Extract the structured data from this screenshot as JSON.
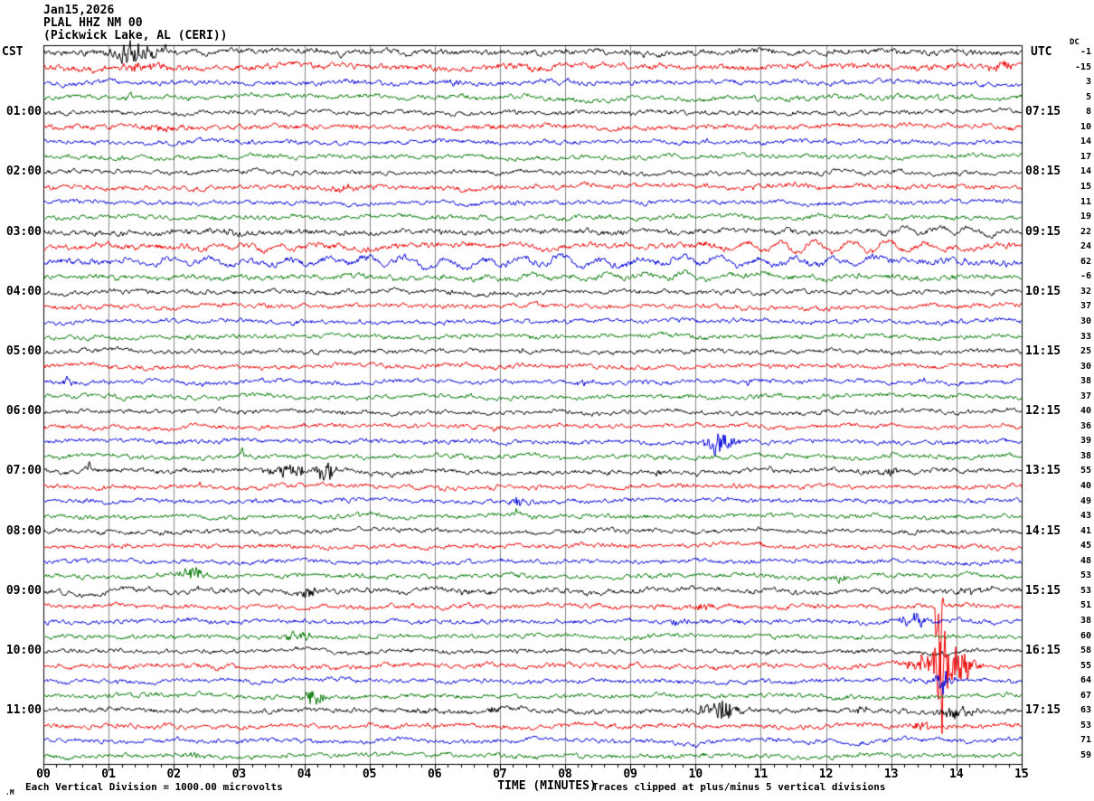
{
  "header": {
    "date": "Jan15,2026",
    "station": "PLAL HHZ NM 00",
    "location": "(Pickwick Lake, AL (CERI))"
  },
  "chart_data": {
    "type": "helicorder-seismogram",
    "left_timezone": "CST",
    "right_timezone": "UTC",
    "dc_label": "DC",
    "minutes_per_line": 15,
    "x_axis": {
      "label": "TIME (MINUTES)",
      "ticks": [
        "00",
        "01",
        "02",
        "03",
        "04",
        "05",
        "06",
        "07",
        "08",
        "09",
        "10",
        "11",
        "12",
        "13",
        "14",
        "15"
      ],
      "minor_per_major": 5
    },
    "footer": {
      "mark": ".M",
      "scale_note": "Each Vertical Division = 1000.00 microvolts",
      "clip_note": "Traces clipped at plus/minus 5 vertical divisions"
    },
    "colors": {
      "trace_cycle": [
        "#000000",
        "#ee0000",
        "#0000dd",
        "#007700"
      ],
      "grid": "#888888",
      "frame": "#000000",
      "background": "#ffffff"
    },
    "rows": [
      {
        "cst": "",
        "utc": "",
        "dc": -1,
        "amp": 1.3,
        "events": [
          {
            "type": "burst",
            "t": 1.35,
            "dur": 0.5,
            "amp": 8
          },
          {
            "type": "spike",
            "t": 1.32,
            "amp": 9
          },
          {
            "type": "spike",
            "t": 1.87,
            "amp": 8
          },
          {
            "type": "burst",
            "t": 1.6,
            "dur": 0.4,
            "amp": 4
          }
        ]
      },
      {
        "cst": "",
        "utc": "",
        "dc": -15,
        "amp": 1.4,
        "events": [
          {
            "type": "burst",
            "t": 1.6,
            "dur": 0.8,
            "amp": 3
          },
          {
            "type": "burst",
            "t": 14.65,
            "dur": 0.35,
            "amp": 4
          }
        ]
      },
      {
        "cst": "",
        "utc": "",
        "dc": 3,
        "amp": 1.1,
        "events": [
          {
            "type": "burst",
            "t": 6.3,
            "dur": 0.3,
            "amp": 2.5
          }
        ]
      },
      {
        "cst": "",
        "utc": "",
        "dc": 5,
        "amp": 1.1,
        "events": [
          {
            "type": "spike",
            "t": 1.34,
            "amp": 8
          }
        ]
      },
      {
        "cst": "01:00",
        "utc": "07:15",
        "dc": 8,
        "amp": 1.0,
        "events": []
      },
      {
        "cst": "",
        "utc": "",
        "dc": 10,
        "amp": 1.15,
        "events": [
          {
            "type": "burst",
            "t": 1.8,
            "dur": 0.5,
            "amp": 2
          }
        ]
      },
      {
        "cst": "",
        "utc": "",
        "dc": 14,
        "amp": 1.0,
        "events": []
      },
      {
        "cst": "",
        "utc": "",
        "dc": 17,
        "amp": 1.0,
        "events": []
      },
      {
        "cst": "02:00",
        "utc": "08:15",
        "dc": 14,
        "amp": 1.0,
        "events": []
      },
      {
        "cst": "",
        "utc": "",
        "dc": 15,
        "amp": 1.1,
        "events": [
          {
            "type": "burst",
            "t": 4.6,
            "dur": 0.4,
            "amp": 2.5
          }
        ]
      },
      {
        "cst": "",
        "utc": "",
        "dc": 11,
        "amp": 1.0,
        "events": []
      },
      {
        "cst": "",
        "utc": "",
        "dc": 19,
        "amp": 1.0,
        "events": []
      },
      {
        "cst": "03:00",
        "utc": "09:15",
        "dc": 22,
        "amp": 1.25,
        "events": [
          {
            "type": "low",
            "t": 12.6,
            "dur": 2.4,
            "amp": 4,
            "period": 0.5
          },
          {
            "type": "burst",
            "t": 2.9,
            "dur": 0.3,
            "amp": 2
          }
        ]
      },
      {
        "cst": "",
        "utc": "",
        "dc": 24,
        "amp": 1.35,
        "events": [
          {
            "type": "low",
            "t": 9.5,
            "dur": 5.5,
            "amp": 6,
            "period": 0.55
          },
          {
            "type": "low",
            "t": 1.0,
            "dur": 4.5,
            "amp": 3,
            "period": 0.5
          }
        ]
      },
      {
        "cst": "",
        "utc": "",
        "dc": 62,
        "amp": 1.45,
        "events": [
          {
            "type": "low",
            "t": 0,
            "dur": 15,
            "amp": 5,
            "period": 0.6
          }
        ]
      },
      {
        "cst": "",
        "utc": "",
        "dc": -6,
        "amp": 1.2,
        "events": [
          {
            "type": "low",
            "t": 5.5,
            "dur": 7,
            "amp": 2.5,
            "period": 0.6
          }
        ]
      },
      {
        "cst": "04:00",
        "utc": "10:15",
        "dc": 32,
        "amp": 1.0,
        "events": []
      },
      {
        "cst": "",
        "utc": "",
        "dc": 37,
        "amp": 1.05,
        "events": []
      },
      {
        "cst": "",
        "utc": "",
        "dc": 30,
        "amp": 1.0,
        "events": []
      },
      {
        "cst": "",
        "utc": "",
        "dc": 33,
        "amp": 1.0,
        "events": []
      },
      {
        "cst": "05:00",
        "utc": "11:15",
        "dc": 25,
        "amp": 1.0,
        "events": [
          {
            "type": "spike",
            "t": 7.35,
            "amp": 4
          }
        ]
      },
      {
        "cst": "",
        "utc": "",
        "dc": 30,
        "amp": 1.05,
        "events": [
          {
            "type": "spike",
            "t": 11.1,
            "amp": 3
          }
        ]
      },
      {
        "cst": "",
        "utc": "",
        "dc": 38,
        "amp": 1.0,
        "events": [
          {
            "type": "burst",
            "t": 0.4,
            "dur": 0.25,
            "amp": 3
          },
          {
            "type": "spike",
            "t": 10.8,
            "amp": -6
          },
          {
            "type": "spike",
            "t": 13.5,
            "amp": 5
          },
          {
            "type": "burst",
            "t": 8.3,
            "dur": 0.3,
            "amp": 2
          }
        ]
      },
      {
        "cst": "",
        "utc": "",
        "dc": 37,
        "amp": 1.0,
        "events": [
          {
            "type": "spike",
            "t": 6.55,
            "amp": 4
          }
        ]
      },
      {
        "cst": "06:00",
        "utc": "12:15",
        "dc": 40,
        "amp": 1.0,
        "events": []
      },
      {
        "cst": "",
        "utc": "",
        "dc": 36,
        "amp": 1.0,
        "events": [
          {
            "type": "spike",
            "t": 6.9,
            "amp": -4
          }
        ]
      },
      {
        "cst": "",
        "utc": "",
        "dc": 39,
        "amp": 1.0,
        "events": [
          {
            "type": "burst",
            "t": 10.35,
            "dur": 0.5,
            "amp": 7
          },
          {
            "type": "spike",
            "t": 10.3,
            "amp": -12
          }
        ]
      },
      {
        "cst": "",
        "utc": "",
        "dc": 38,
        "amp": 1.0,
        "events": [
          {
            "type": "spike",
            "t": 3.05,
            "amp": 9
          },
          {
            "type": "spike",
            "t": 7.9,
            "amp": 4
          }
        ]
      },
      {
        "cst": "07:00",
        "utc": "13:15",
        "dc": 55,
        "amp": 1.1,
        "events": [
          {
            "type": "spike",
            "t": 0.7,
            "amp": 10
          },
          {
            "type": "burst",
            "t": 3.8,
            "dur": 0.6,
            "amp": 5
          },
          {
            "type": "burst",
            "t": 4.3,
            "dur": 0.3,
            "amp": 8
          },
          {
            "type": "spike",
            "t": 4.35,
            "amp": 12
          },
          {
            "type": "burst",
            "t": 12.95,
            "dur": 0.35,
            "amp": 4
          },
          {
            "type": "burst",
            "t": 9.4,
            "dur": 0.2,
            "amp": 2.5
          }
        ]
      },
      {
        "cst": "",
        "utc": "",
        "dc": 40,
        "amp": 1.0,
        "events": [
          {
            "type": "spike",
            "t": 2.4,
            "amp": 5
          },
          {
            "type": "spike",
            "t": 14.85,
            "amp": 4
          }
        ]
      },
      {
        "cst": "",
        "utc": "",
        "dc": 49,
        "amp": 1.0,
        "events": [
          {
            "type": "burst",
            "t": 7.3,
            "dur": 0.3,
            "amp": 2.5
          }
        ]
      },
      {
        "cst": "",
        "utc": "",
        "dc": 43,
        "amp": 1.0,
        "events": [
          {
            "type": "spike",
            "t": 7.25,
            "amp": 5
          }
        ]
      },
      {
        "cst": "08:00",
        "utc": "14:15",
        "dc": 41,
        "amp": 1.0,
        "events": []
      },
      {
        "cst": "",
        "utc": "",
        "dc": 45,
        "amp": 1.0,
        "events": [
          {
            "type": "spike",
            "t": 7.3,
            "amp": 4
          }
        ]
      },
      {
        "cst": "",
        "utc": "",
        "dc": 48,
        "amp": 1.0,
        "events": [
          {
            "type": "spike",
            "t": 0.65,
            "amp": 5
          }
        ]
      },
      {
        "cst": "",
        "utc": "",
        "dc": 53,
        "amp": 1.0,
        "events": [
          {
            "type": "burst",
            "t": 2.3,
            "dur": 0.4,
            "amp": 5
          },
          {
            "type": "burst",
            "t": 12.2,
            "dur": 0.3,
            "amp": 2.5
          }
        ]
      },
      {
        "cst": "09:00",
        "utc": "15:15",
        "dc": 53,
        "amp": 1.2,
        "events": [
          {
            "type": "burst",
            "t": 4.05,
            "dur": 0.3,
            "amp": 3
          },
          {
            "type": "burst",
            "t": 14.3,
            "dur": 0.4,
            "amp": 2.5
          }
        ]
      },
      {
        "cst": "",
        "utc": "",
        "dc": 51,
        "amp": 1.05,
        "events": [
          {
            "type": "spike",
            "t": 13.75,
            "amp": -90
          },
          {
            "type": "burst",
            "t": 10.1,
            "dur": 0.4,
            "amp": 2.5
          }
        ]
      },
      {
        "cst": "",
        "utc": "",
        "dc": 38,
        "amp": 1.05,
        "events": [
          {
            "type": "spike",
            "t": 0.3,
            "amp": 4
          },
          {
            "type": "burst",
            "t": 13.35,
            "dur": 0.35,
            "amp": 7
          },
          {
            "type": "burst",
            "t": 9.8,
            "dur": 0.4,
            "amp": 2.5
          }
        ]
      },
      {
        "cst": "",
        "utc": "",
        "dc": 60,
        "amp": 1.0,
        "events": [
          {
            "type": "burst",
            "t": 3.9,
            "dur": 0.5,
            "amp": 3
          }
        ]
      },
      {
        "cst": "10:00",
        "utc": "16:15",
        "dc": 58,
        "amp": 1.0,
        "events": [
          {
            "type": "spike",
            "t": 13.78,
            "amp": 5
          }
        ]
      },
      {
        "cst": "",
        "utc": "",
        "dc": 55,
        "amp": 1.1,
        "events": [
          {
            "type": "burst",
            "t": 13.8,
            "dur": 0.5,
            "amp": 20
          },
          {
            "type": "burst",
            "t": 14.15,
            "dur": 0.35,
            "amp": 9
          },
          {
            "type": "spike",
            "t": 13.78,
            "amp": -85
          },
          {
            "type": "burst",
            "t": 13.35,
            "dur": 0.25,
            "amp": 6
          }
        ]
      },
      {
        "cst": "",
        "utc": "",
        "dc": 64,
        "amp": 1.0,
        "events": [
          {
            "type": "burst",
            "t": 13.8,
            "dur": 0.3,
            "amp": 6
          },
          {
            "type": "spike",
            "t": 13.8,
            "amp": -14
          }
        ]
      },
      {
        "cst": "",
        "utc": "",
        "dc": 67,
        "amp": 1.0,
        "events": [
          {
            "type": "burst",
            "t": 4.15,
            "dur": 0.4,
            "amp": 5
          },
          {
            "type": "spike",
            "t": 13.8,
            "amp": -4
          }
        ]
      },
      {
        "cst": "11:00",
        "utc": "17:15",
        "dc": 63,
        "amp": 1.1,
        "events": [
          {
            "type": "burst",
            "t": 10.35,
            "dur": 0.6,
            "amp": 7
          },
          {
            "type": "burst",
            "t": 14.0,
            "dur": 0.5,
            "amp": 4
          },
          {
            "type": "burst",
            "t": 5.9,
            "dur": 0.3,
            "amp": 3
          },
          {
            "type": "burst",
            "t": 6.9,
            "dur": 0.2,
            "amp": 2.5
          },
          {
            "type": "burst",
            "t": 12.55,
            "dur": 0.2,
            "amp": 2.5
          }
        ]
      },
      {
        "cst": "",
        "utc": "",
        "dc": 53,
        "amp": 1.1,
        "events": [
          {
            "type": "burst",
            "t": 13.45,
            "dur": 0.3,
            "amp": 3
          }
        ]
      },
      {
        "cst": "",
        "utc": "",
        "dc": 71,
        "amp": 1.0,
        "events": [
          {
            "type": "spike",
            "t": 2.05,
            "amp": 4
          }
        ]
      },
      {
        "cst": "",
        "utc": "",
        "dc": 59,
        "amp": 1.0,
        "events": [
          {
            "type": "burst",
            "t": 2.3,
            "dur": 0.3,
            "amp": 2.5
          }
        ]
      }
    ]
  }
}
